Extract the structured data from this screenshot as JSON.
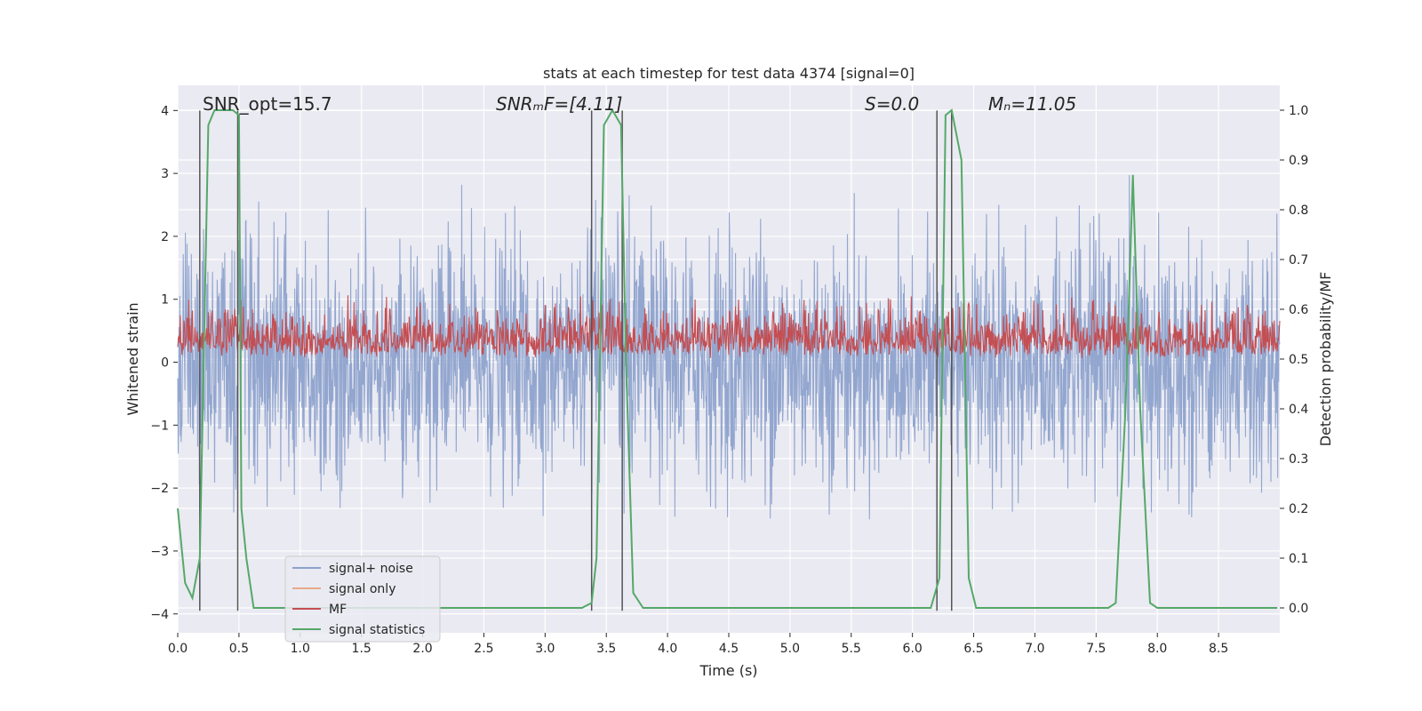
{
  "chart_data": {
    "type": "line",
    "title": "stats at each timestep for test data 4374 [signal=0]",
    "xlabel": "Time (s)",
    "ylabel_left": "Whitened strain",
    "ylabel_right": "Detection probability/MF",
    "xlim": [
      0.0,
      9.0
    ],
    "ylim_left": [
      -4.3,
      4.4
    ],
    "ylim_right": [
      -0.05,
      1.05
    ],
    "x_ticks": [
      0.0,
      0.5,
      1.0,
      1.5,
      2.0,
      2.5,
      3.0,
      3.5,
      4.0,
      4.5,
      5.0,
      5.5,
      6.0,
      6.5,
      7.0,
      7.5,
      8.0,
      8.5
    ],
    "x_tick_labels": [
      "0.0",
      "0.5",
      "1.0",
      "1.5",
      "2.0",
      "2.5",
      "3.0",
      "3.5",
      "4.0",
      "4.5",
      "5.0",
      "5.5",
      "6.0",
      "6.5",
      "7.0",
      "7.5",
      "8.0",
      "8.5"
    ],
    "y_left_ticks": [
      -4,
      -3,
      -2,
      -1,
      0,
      1,
      2,
      3,
      4
    ],
    "y_left_tick_labels": [
      "−4",
      "−3",
      "−2",
      "−1",
      "0",
      "1",
      "2",
      "3",
      "4"
    ],
    "y_right_ticks": [
      0.0,
      0.1,
      0.2,
      0.3,
      0.4,
      0.5,
      0.6,
      0.7,
      0.8,
      0.9,
      1.0
    ],
    "y_right_tick_labels": [
      "0.0",
      "0.1",
      "0.2",
      "0.3",
      "0.4",
      "0.5",
      "0.6",
      "0.7",
      "0.8",
      "0.9",
      "1.0"
    ],
    "annotations": [
      {
        "text": "SNR_opt=15.7",
        "x": 0.2
      },
      {
        "text": "SNRₘF=[4.11]",
        "x": 2.6
      },
      {
        "text": "S=0.0",
        "x": 5.6
      },
      {
        "text": "Mₙ=11.05",
        "x": 6.6
      }
    ],
    "series": [
      {
        "name": "signal+ noise",
        "color": "#8da2cc",
        "axis": "left",
        "description": "noise-like whitened strain, roughly between -2.5 and 3",
        "amplitude_range": [
          -2.5,
          3.1
        ]
      },
      {
        "name": "signal only",
        "color": "#e9a88a",
        "axis": "left",
        "values": []
      },
      {
        "name": "MF",
        "color": "#c44e52",
        "axis": "right",
        "description": "matched filter output fluctuating around 0.5",
        "amplitude_range": [
          0.5,
          0.63
        ]
      },
      {
        "name": "signal statistics",
        "color": "#55a868",
        "axis": "right",
        "x": [
          0.0,
          0.06,
          0.12,
          0.18,
          0.25,
          0.3,
          0.35,
          0.45,
          0.5,
          0.52,
          0.56,
          0.62,
          1.0,
          2.0,
          3.0,
          3.3,
          3.38,
          3.42,
          3.48,
          3.55,
          3.62,
          3.66,
          3.72,
          3.8,
          4.0,
          5.0,
          6.0,
          6.15,
          6.22,
          6.27,
          6.32,
          6.4,
          6.46,
          6.52,
          6.6,
          7.0,
          7.6,
          7.66,
          7.74,
          7.8,
          7.86,
          7.94,
          8.0,
          8.5,
          8.98
        ],
        "y": [
          0.2,
          0.05,
          0.02,
          0.1,
          0.97,
          1.0,
          1.0,
          1.0,
          0.99,
          0.2,
          0.1,
          0.0,
          0.0,
          0.0,
          0.0,
          0.0,
          0.01,
          0.1,
          0.97,
          1.0,
          0.97,
          0.5,
          0.03,
          0.0,
          0.0,
          0.0,
          0.0,
          0.0,
          0.06,
          0.99,
          1.0,
          0.9,
          0.06,
          0.0,
          0.0,
          0.0,
          0.0,
          0.01,
          0.4,
          0.87,
          0.4,
          0.01,
          0.0,
          0.0,
          0.0
        ]
      }
    ],
    "vertical_lines": {
      "color": "#555555",
      "x": [
        0.18,
        0.49,
        3.38,
        3.63,
        6.2,
        6.32
      ],
      "y_range": [
        -3.95,
        4.0
      ]
    },
    "legend": {
      "position": "lower-left",
      "entries": [
        "signal+ noise",
        "signal only",
        "MF",
        "signal statistics"
      ]
    },
    "grid": true,
    "colors": {
      "plot_background": "#eaeaf2",
      "grid": "#ffffff",
      "text": "#262626"
    }
  }
}
